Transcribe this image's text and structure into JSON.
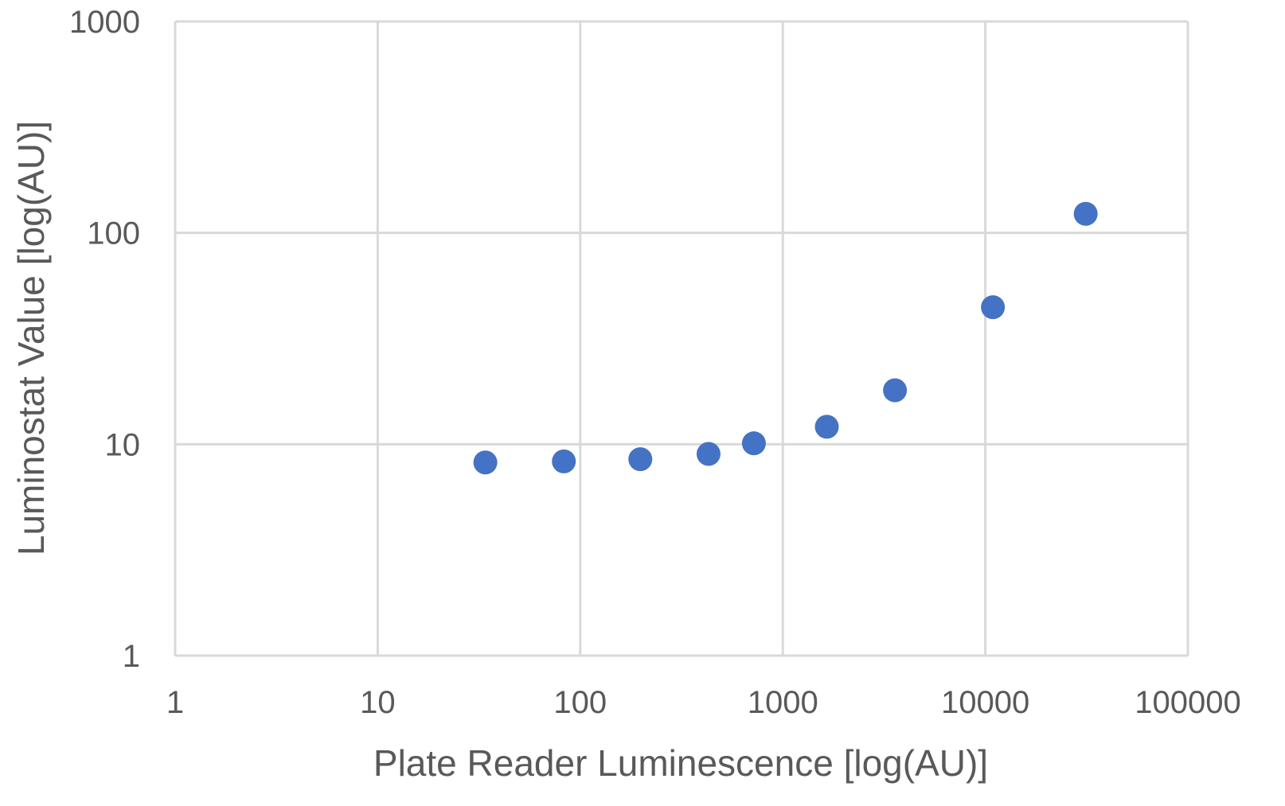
{
  "chart_data": {
    "type": "scatter",
    "title": "",
    "xlabel": "Plate Reader Luminescence [log(AU)]",
    "ylabel": "Luminostat Value [log(AU)]",
    "x_scale": "log",
    "y_scale": "log",
    "xlim": [
      1,
      100000
    ],
    "ylim": [
      1,
      1000
    ],
    "x_ticks": [
      "1",
      "10",
      "100",
      "1000",
      "10000",
      "100000"
    ],
    "y_ticks": [
      "1",
      "10",
      "100",
      "1000"
    ],
    "grid": true,
    "legend": "none",
    "marker_color": "#4472c4",
    "points": [
      {
        "x": 34,
        "y": 8.2
      },
      {
        "x": 83,
        "y": 8.3
      },
      {
        "x": 198,
        "y": 8.5
      },
      {
        "x": 430,
        "y": 9.0
      },
      {
        "x": 720,
        "y": 10.1
      },
      {
        "x": 1650,
        "y": 12.1
      },
      {
        "x": 3580,
        "y": 18.0
      },
      {
        "x": 10900,
        "y": 44.5
      },
      {
        "x": 31300,
        "y": 123
      }
    ]
  }
}
